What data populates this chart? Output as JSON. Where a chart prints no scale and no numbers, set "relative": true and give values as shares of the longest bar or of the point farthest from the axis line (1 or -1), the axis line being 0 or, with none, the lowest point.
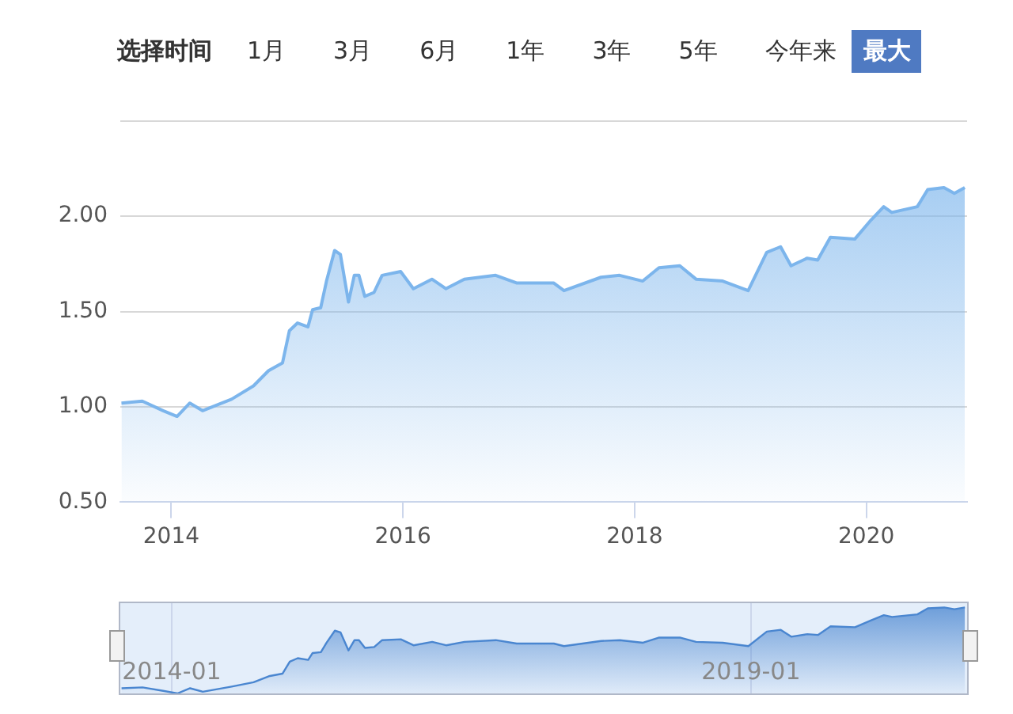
{
  "chart_data": [
    {
      "type": "area",
      "annotations": [
        "选择时间",
        "1月",
        "3月",
        "6月",
        "1年",
        "3年",
        "5年",
        "今年来",
        "最大"
      ],
      "x": [
        2013.57,
        2013.75,
        2013.93,
        2014.05,
        2014.16,
        2014.27,
        2014.52,
        2014.71,
        2014.84,
        2014.96,
        2015.02,
        2015.09,
        2015.18,
        2015.22,
        2015.29,
        2015.34,
        2015.41,
        2015.46,
        2015.53,
        2015.58,
        2015.62,
        2015.67,
        2015.75,
        2015.82,
        2015.98,
        2016.09,
        2016.25,
        2016.37,
        2016.53,
        2016.8,
        2016.98,
        2017.25,
        2017.3,
        2017.39,
        2017.71,
        2017.87,
        2018.07,
        2018.21,
        2018.39,
        2018.53,
        2018.76,
        2018.98,
        2019.14,
        2019.26,
        2019.35,
        2019.49,
        2019.58,
        2019.69,
        2019.9,
        2020.04,
        2020.15,
        2020.22,
        2020.44,
        2020.53,
        2020.67,
        2020.76,
        2020.85
      ],
      "series": [
        {
          "color": "#7cb5ec",
          "values": [
            1.02,
            1.03,
            0.98,
            0.95,
            1.02,
            0.98,
            1.04,
            1.11,
            1.19,
            1.23,
            1.4,
            1.44,
            1.42,
            1.51,
            1.52,
            1.66,
            1.82,
            1.8,
            1.55,
            1.69,
            1.69,
            1.58,
            1.6,
            1.69,
            1.71,
            1.62,
            1.67,
            1.62,
            1.67,
            1.69,
            1.65,
            1.65,
            1.65,
            1.61,
            1.68,
            1.69,
            1.66,
            1.73,
            1.74,
            1.67,
            1.66,
            1.61,
            1.81,
            1.84,
            1.74,
            1.78,
            1.77,
            1.89,
            1.88,
            1.98,
            2.05,
            2.02,
            2.05,
            2.14,
            2.15,
            2.12,
            2.15
          ]
        }
      ],
      "xlim": [
        2013.56,
        2020.87
      ],
      "xticks": [
        2014,
        2016,
        2018,
        2020
      ],
      "ylim": [
        0.5,
        2.5
      ],
      "yticks": [
        {
          "value": 0.5,
          "label": "0.50"
        },
        {
          "value": 1,
          "label": "1.00"
        },
        {
          "value": 1.5,
          "label": "1.50"
        },
        {
          "value": 2,
          "label": "2.00"
        },
        {
          "value": 2.5,
          "label": null
        }
      ],
      "grid": "y",
      "legend": false
    },
    {
      "type": "area",
      "relative": true,
      "x": [
        "2013-07-27",
        "2013-10-01",
        "2013-12-05",
        "2014-01-19",
        "2014-02-28",
        "2014-04-09",
        "2014-07-09",
        "2014-09-16",
        "2014-11-03",
        "2014-12-16",
        "2015-01-08",
        "2015-02-02",
        "2015-03-07",
        "2015-03-21",
        "2015-04-16",
        "2015-05-04",
        "2015-05-30",
        "2015-06-17",
        "2015-07-12",
        "2015-07-31",
        "2015-08-14",
        "2015-09-02",
        "2015-10-01",
        "2015-10-26",
        "2015-12-24",
        "2016-02-02",
        "2016-04-01",
        "2016-05-15",
        "2016-07-12",
        "2016-10-19",
        "2016-12-24",
        "2017-04-01",
        "2017-04-20",
        "2017-05-22",
        "2017-09-16",
        "2017-11-14",
        "2018-01-26",
        "2018-03-18",
        "2018-05-22",
        "2018-07-12",
        "2018-10-04",
        "2018-12-24",
        "2019-02-20",
        "2019-04-05",
        "2019-05-08",
        "2019-06-28",
        "2019-07-31",
        "2019-09-09",
        "2019-11-25",
        "2020-01-15",
        "2020-02-24",
        "2020-03-21",
        "2020-06-09",
        "2020-07-12",
        "2020-09-02",
        "2020-10-04",
        "2020-11-06"
      ],
      "series": [
        {
          "color": "#4a86d0",
          "values": [
            0.06,
            0.07,
            0.03,
            0,
            0.06,
            0.02,
            0.08,
            0.13,
            0.2,
            0.23,
            0.37,
            0.41,
            0.39,
            0.47,
            0.48,
            0.59,
            0.73,
            0.71,
            0.5,
            0.62,
            0.62,
            0.53,
            0.54,
            0.62,
            0.63,
            0.56,
            0.6,
            0.56,
            0.6,
            0.62,
            0.58,
            0.58,
            0.58,
            0.55,
            0.61,
            0.62,
            0.59,
            0.65,
            0.65,
            0.6,
            0.59,
            0.55,
            0.72,
            0.74,
            0.66,
            0.69,
            0.68,
            0.78,
            0.77,
            0.85,
            0.91,
            0.89,
            0.92,
            0.99,
            1,
            0.98,
            1
          ]
        }
      ],
      "xlim": [
        "2013-07-23",
        "2020-11-13"
      ],
      "xticks": [
        "2014-01",
        "2019-01"
      ],
      "grid": "x",
      "legend": false
    }
  ]
}
